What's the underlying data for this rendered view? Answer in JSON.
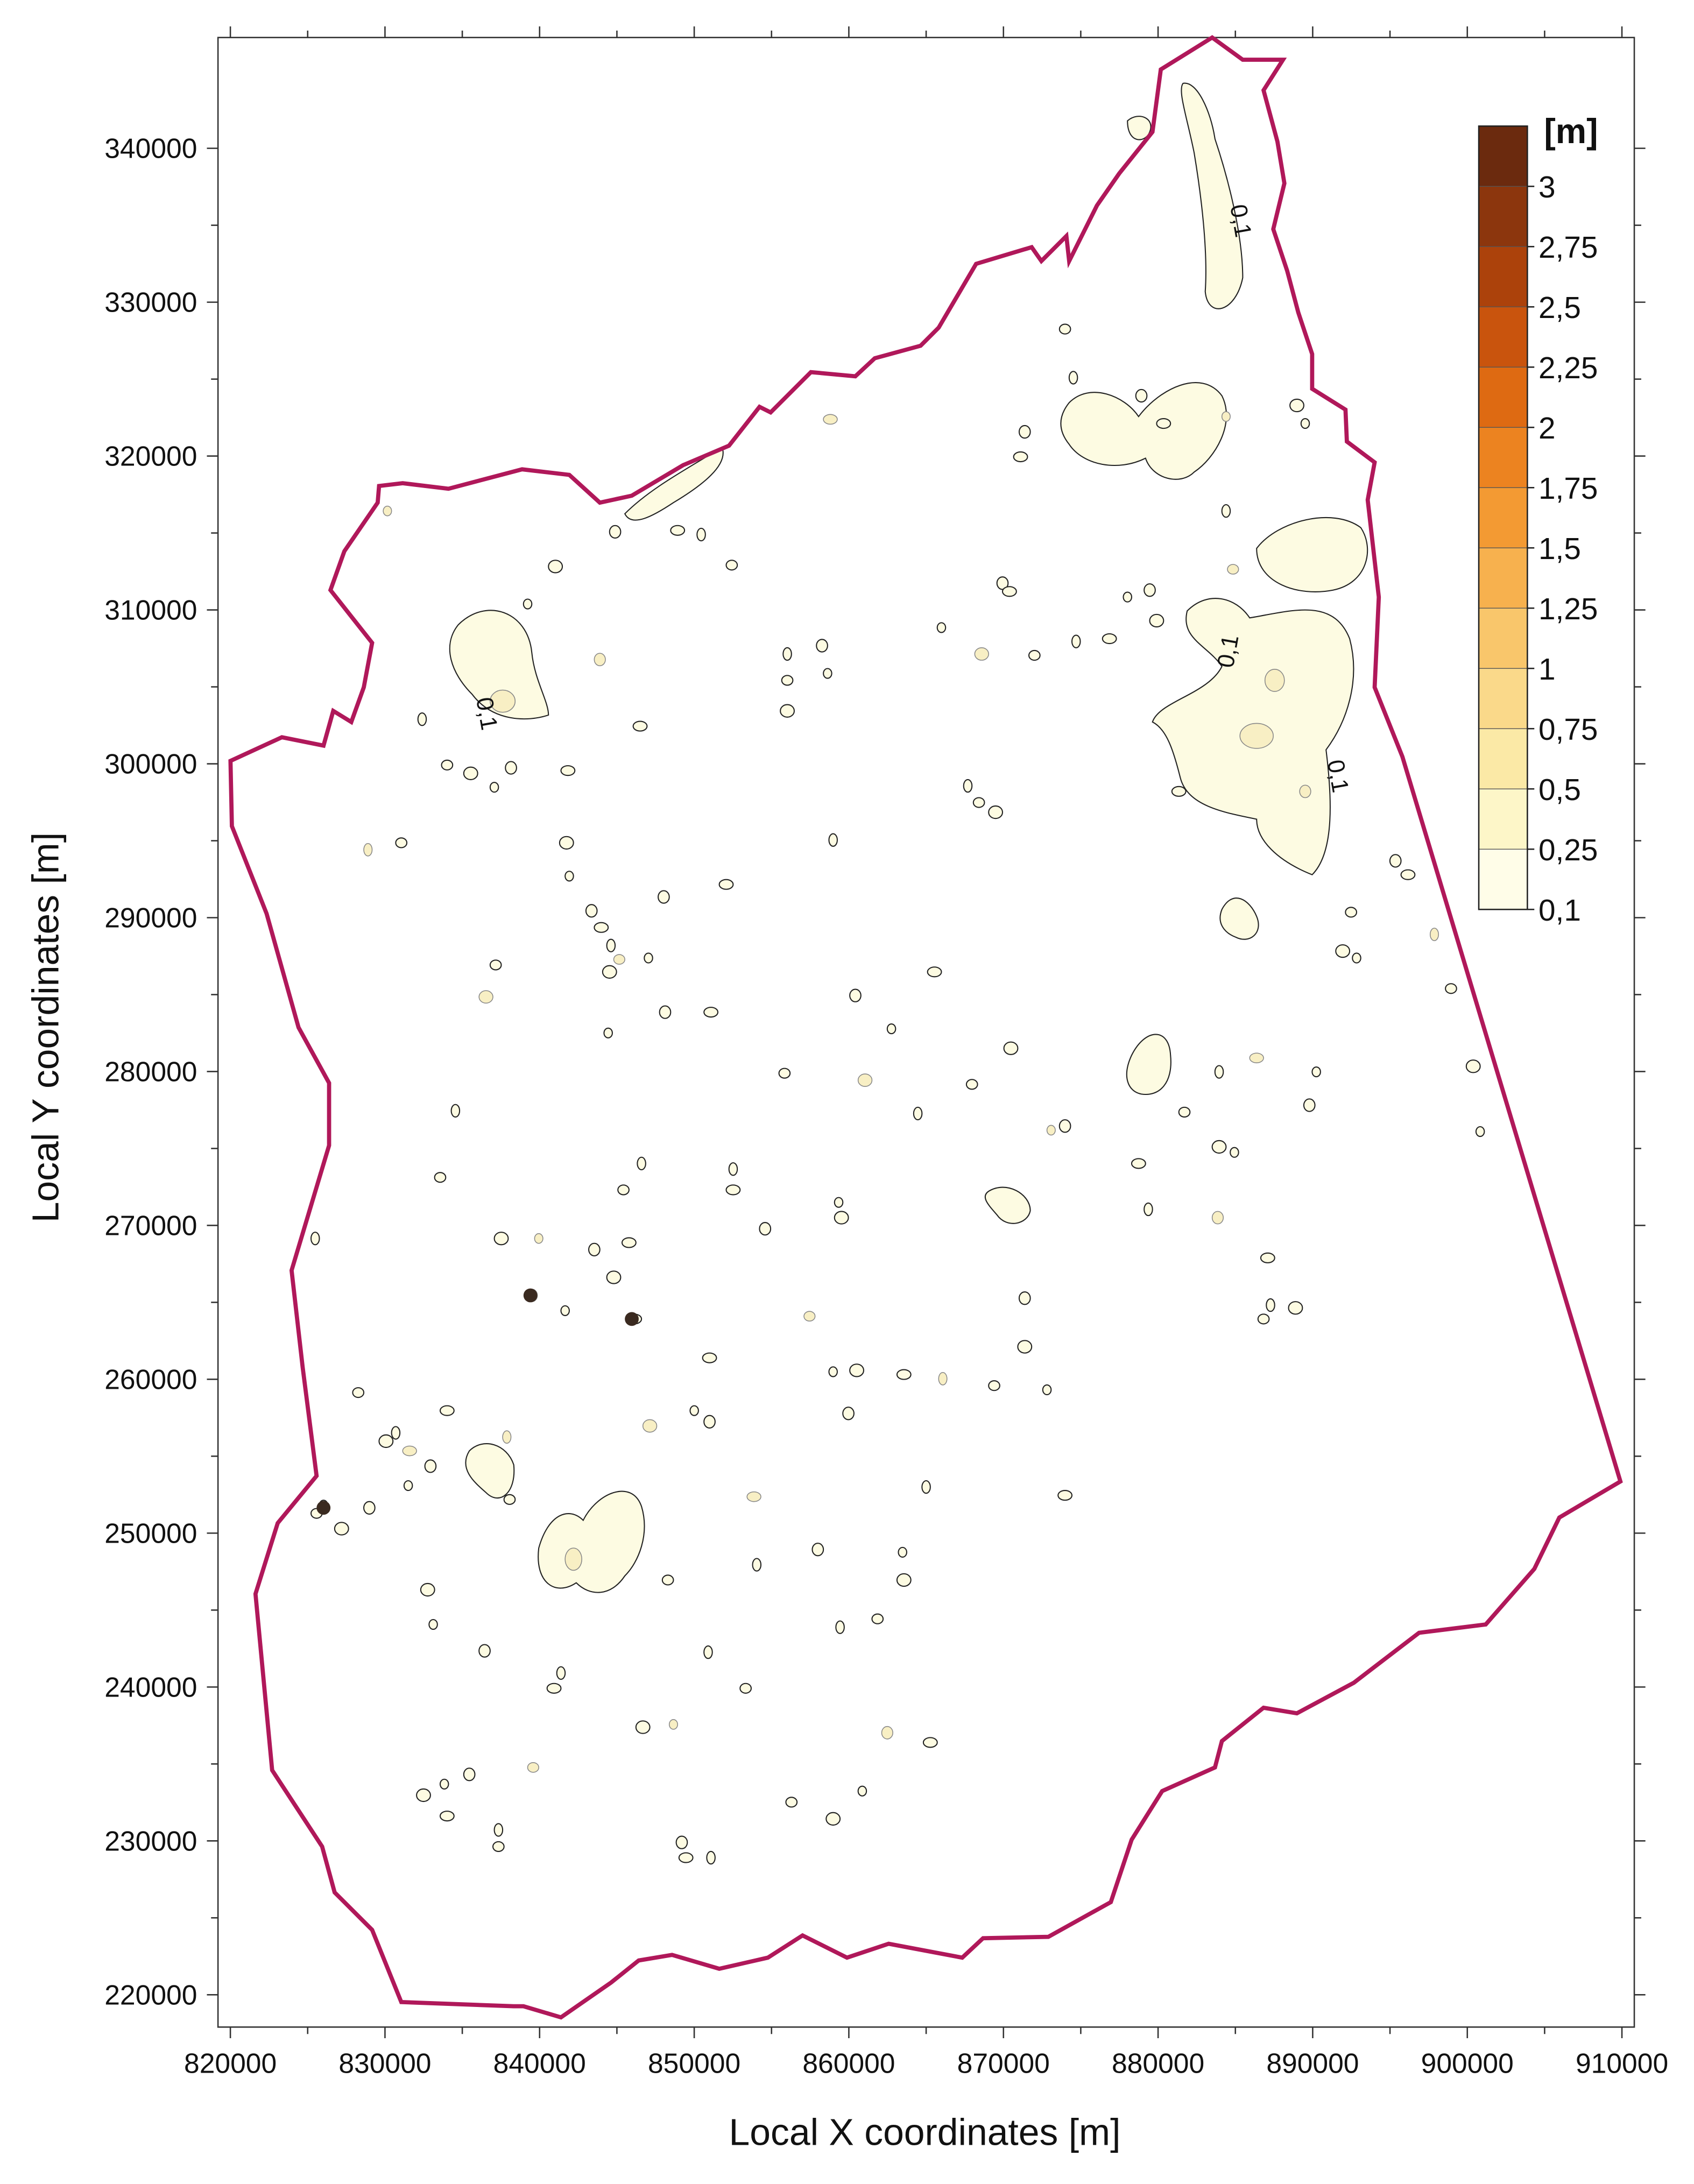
{
  "chart_data": {
    "type": "contour",
    "x_label": "Local X coordinates [m]",
    "y_label": "Local Y coordinates [m]",
    "xlim": [
      819200,
      910800
    ],
    "ylim": [
      217900,
      347200
    ],
    "xticks": [
      820000,
      830000,
      840000,
      850000,
      860000,
      870000,
      880000,
      890000,
      900000,
      910000
    ],
    "yticks": [
      220000,
      230000,
      240000,
      250000,
      260000,
      270000,
      280000,
      290000,
      300000,
      310000,
      320000,
      330000,
      340000
    ],
    "boundary_color": "#b0185a",
    "colorbar": {
      "title": "[m]",
      "ticks": [
        {
          "value": 0.1,
          "label": "0,1"
        },
        {
          "value": 0.25,
          "label": "0,25"
        },
        {
          "value": 0.5,
          "label": "0,5"
        },
        {
          "value": 0.75,
          "label": "0,75"
        },
        1,
        {
          "value": 1.25,
          "label": "1,25"
        },
        {
          "value": 1.5,
          "label": "1,5"
        },
        {
          "value": 1.75,
          "label": "1,75"
        },
        2,
        {
          "value": 2.25,
          "label": "2,25"
        },
        {
          "value": 2.5,
          "label": "2,5"
        },
        {
          "value": 2.75,
          "label": "2,75"
        },
        3
      ],
      "colors": [
        "#fffde8",
        "#fdf6c8",
        "#fbe9a6",
        "#fad98a",
        "#f9c66b",
        "#f7b14e",
        "#f39a33",
        "#ec8320",
        "#de6a12",
        "#c9540d",
        "#ac420b",
        "#8c360d",
        "#6b2a0e"
      ]
    },
    "annotations": [
      "0,1",
      "0,1",
      "0,1",
      "0,1"
    ]
  }
}
